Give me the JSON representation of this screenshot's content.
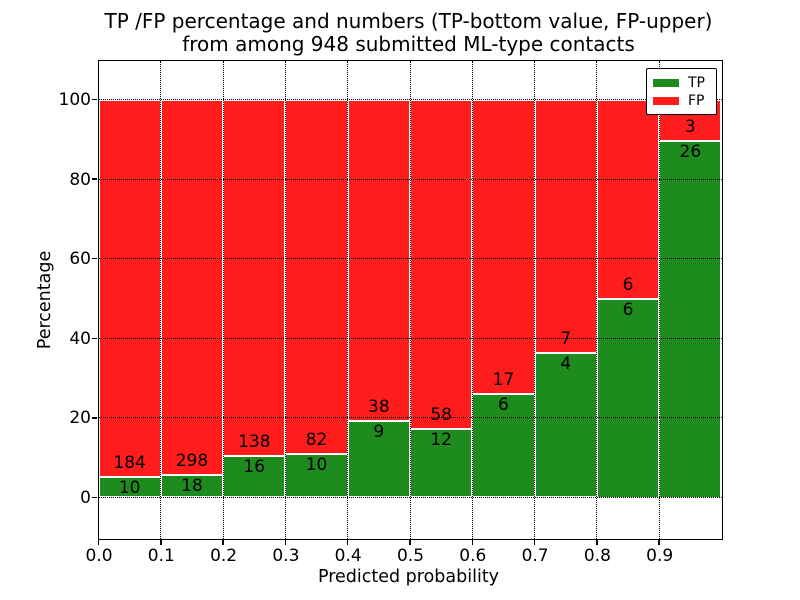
{
  "title": {
    "line1": "TP /FP percentage and numbers (TP-bottom value, FP-upper)",
    "line2": "from among 948 submitted ML-type contacts"
  },
  "axes": {
    "xlabel": "Predicted probability",
    "ylabel": "Percentage",
    "xtick_labels": [
      "0.0",
      "0.1",
      "0.2",
      "0.3",
      "0.4",
      "0.5",
      "0.6",
      "0.7",
      "0.8",
      "0.9"
    ],
    "ytick_labels": [
      "0",
      "20",
      "40",
      "60",
      "80",
      "100"
    ],
    "ytick_values": [
      0,
      20,
      40,
      60,
      80,
      100
    ],
    "xlim": [
      0.0,
      1.0
    ],
    "ylim": [
      -10.3,
      109.8
    ],
    "grid_style": "dotted"
  },
  "legend": {
    "position": "upper-right",
    "items": [
      {
        "label": "TP",
        "color": "#1e8b1e"
      },
      {
        "label": "FP",
        "color": "#fe1c1c"
      }
    ]
  },
  "chart_data": {
    "type": "bar",
    "stacked": true,
    "normalized_to_percent": true,
    "title": "TP /FP percentage and numbers (TP-bottom value, FP-upper) from among 948 submitted ML-type contacts",
    "xlabel": "Predicted probability",
    "ylabel": "Percentage",
    "categories": [
      "0.0-0.1",
      "0.1-0.2",
      "0.2-0.3",
      "0.3-0.4",
      "0.4-0.5",
      "0.5-0.6",
      "0.6-0.7",
      "0.7-0.8",
      "0.8-0.9",
      "0.9-1.0"
    ],
    "series": [
      {
        "name": "TP",
        "color": "#1e8b1e",
        "counts": [
          10,
          18,
          16,
          10,
          9,
          12,
          6,
          4,
          6,
          26
        ]
      },
      {
        "name": "FP",
        "color": "#fe1c1c",
        "counts": [
          184,
          298,
          138,
          82,
          38,
          58,
          17,
          7,
          6,
          3
        ]
      }
    ],
    "tp_percent_of_bin": [
      5.2,
      5.7,
      10.4,
      10.9,
      19.1,
      17.1,
      26.1,
      36.4,
      50.0,
      89.7
    ],
    "total_contacts": 948,
    "ylim": [
      -10.3,
      109.8
    ],
    "legend_position": "upper-right",
    "grid": "dotted"
  }
}
